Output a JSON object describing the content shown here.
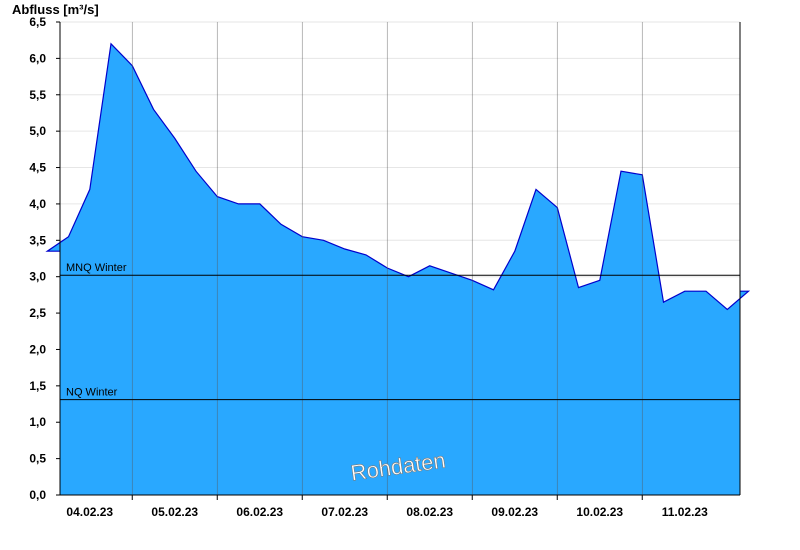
{
  "chart_data": {
    "type": "area",
    "ylabel": "Abfluss [m³/s]",
    "watermark": "Rohdaten",
    "ylim": [
      0,
      6.5
    ],
    "yticks": [
      "0,0",
      "0,5",
      "1,0",
      "1,5",
      "2,0",
      "2,5",
      "3,0",
      "3,5",
      "4,0",
      "4,5",
      "5,0",
      "5,5",
      "6,0",
      "6,5"
    ],
    "x_dates": [
      "04.02.23",
      "05.02.23",
      "06.02.23",
      "07.02.23",
      "08.02.23",
      "09.02.23",
      "10.02.23",
      "11.02.23"
    ],
    "grid": true,
    "colors": {
      "fill": "#29a8ff",
      "line": "#0000cc",
      "refline": "#000000"
    },
    "reference_lines": [
      {
        "name": "MNQ Winter",
        "value": 3.02
      },
      {
        "name": "NQ Winter",
        "value": 1.31
      }
    ],
    "series": [
      {
        "x": [
          "03.02.23 12:00",
          "03.02.23 18:00",
          "04.02.23 00:00",
          "04.02.23 06:00",
          "04.02.23 12:00",
          "04.02.23 18:00",
          "05.02.23 00:00",
          "05.02.23 06:00",
          "05.02.23 12:00",
          "05.02.23 18:00",
          "06.02.23 00:00",
          "06.02.23 06:00",
          "06.02.23 12:00",
          "06.02.23 18:00",
          "07.02.23 00:00",
          "07.02.23 06:00",
          "07.02.23 12:00",
          "07.02.23 18:00",
          "08.02.23 00:00",
          "08.02.23 06:00",
          "08.02.23 12:00",
          "08.02.23 18:00",
          "09.02.23 00:00",
          "09.02.23 06:00",
          "09.02.23 12:00",
          "09.02.23 18:00",
          "10.02.23 00:00",
          "10.02.23 06:00",
          "10.02.23 12:00",
          "10.02.23 18:00",
          "11.02.23 00:00",
          "11.02.23 06:00",
          "11.02.23 12:00",
          "11.02.23 18:00"
        ],
        "values": [
          3.35,
          3.55,
          4.2,
          6.2,
          5.9,
          5.3,
          4.9,
          4.45,
          4.1,
          4.0,
          4.0,
          3.72,
          3.55,
          3.5,
          3.38,
          3.3,
          3.12,
          3.0,
          3.15,
          3.05,
          2.95,
          2.82,
          3.35,
          4.2,
          3.95,
          2.85,
          2.95,
          4.45,
          4.4,
          2.65,
          2.8,
          2.8,
          2.55,
          2.8
        ]
      }
    ]
  }
}
